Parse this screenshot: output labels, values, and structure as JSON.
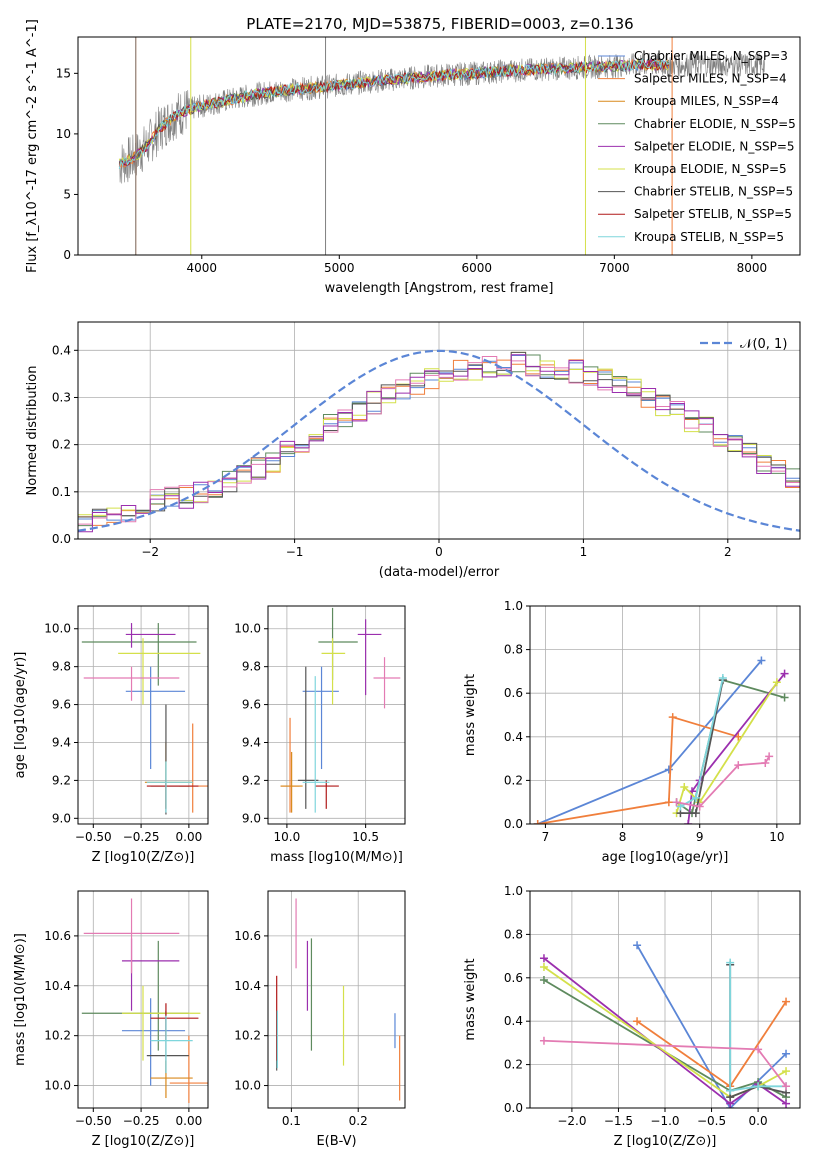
{
  "title": "PLATE=2170, MJD=53875, FIBERID=0003, z=0.136",
  "colors": {
    "chabrier_miles": "#5b86d6",
    "salpeter_miles": "#f07f3c",
    "kroupa_miles": "#d9891c",
    "chabrier_elodie": "#5e8a5e",
    "salpeter_elodie": "#9b2fae",
    "kroupa_elodie": "#d4e04a",
    "chabrier_stelib": "#555555",
    "salpeter_stelib": "#b01818",
    "kroupa_stelib": "#7fd6dc",
    "data": "#808080",
    "gaussian": "#5b86d6",
    "pink": "#e37bb3"
  },
  "chart_data": [
    {
      "type": "line",
      "xlabel": "wavelength [Angstrom, rest frame]",
      "ylabel": "Flux [f_λ10^-17 erg cm^-2 s^-1 A^-1]",
      "xlim": [
        3100,
        8350
      ],
      "ylim": [
        0,
        18
      ],
      "xticks": [
        "4000",
        "5000",
        "6000",
        "7000",
        "8000"
      ],
      "yticks": [
        "0",
        "5",
        "10",
        "15"
      ],
      "grid": false,
      "legend_position": "top-right",
      "legend": [
        "Chabrier MILES, N_SSP=3",
        "Salpeter MILES, N_SSP=4",
        "Kroupa MILES, N_SSP=4",
        "Chabrier ELODIE, N_SSP=5",
        "Salpeter ELODIE, N_SSP=5",
        "Kroupa ELODIE, N_SSP=5",
        "Chabrier STELIB, N_SSP=5",
        "Salpeter STELIB, N_SSP=5",
        "Kroupa STELIB, N_SSP=5"
      ],
      "continuum": {
        "x": [
          3400,
          3500,
          3600,
          3700,
          3800,
          3900,
          4000,
          4200,
          4400,
          4600,
          4800,
          5000,
          5200,
          5400,
          5600,
          5800,
          6000,
          6200,
          6400,
          6600,
          6800,
          7000,
          7200,
          7400
        ],
        "y": [
          7.5,
          8.0,
          9.0,
          10.5,
          11.5,
          12.0,
          12.3,
          12.8,
          13.3,
          13.6,
          13.8,
          14.0,
          14.3,
          14.5,
          14.7,
          14.9,
          15.0,
          15.2,
          15.3,
          15.4,
          15.5,
          15.6,
          15.7,
          15.7
        ]
      }
    },
    {
      "type": "histogram",
      "xlabel": "(data-model)/error",
      "ylabel": "Normed distribution",
      "xlim": [
        -2.5,
        2.5
      ],
      "ylim": [
        0,
        0.46
      ],
      "xticks": [
        "−2",
        "−1",
        "0",
        "1",
        "2"
      ],
      "yticks": [
        "0.0",
        "0.1",
        "0.2",
        "0.3",
        "0.4"
      ],
      "grid": true,
      "legend_position": "top-right",
      "legend": [
        "𝒩(0, 1)"
      ],
      "bin_width": 0.1,
      "envelope": [
        0.035,
        0.04,
        0.05,
        0.06,
        0.07,
        0.08,
        0.085,
        0.09,
        0.1,
        0.11,
        0.12,
        0.135,
        0.15,
        0.165,
        0.185,
        0.2,
        0.22,
        0.24,
        0.26,
        0.275,
        0.29,
        0.305,
        0.32,
        0.33,
        0.34,
        0.35,
        0.355,
        0.36,
        0.365,
        0.37,
        0.372,
        0.37,
        0.365,
        0.36,
        0.355,
        0.35,
        0.34,
        0.33,
        0.315,
        0.3,
        0.285,
        0.27,
        0.25,
        0.235,
        0.215,
        0.2,
        0.18,
        0.16,
        0.145,
        0.13
      ]
    },
    {
      "type": "scatter",
      "xlabel": "Z [log10(Z/Z⊙)]",
      "ylabel": "age [log10(age/yr)]",
      "xlim": [
        -0.58,
        0.1
      ],
      "ylim": [
        8.97,
        10.12
      ],
      "xticks": [
        "−0.50",
        "−0.25",
        "0.00"
      ],
      "yticks": [
        "9.0",
        "9.2",
        "9.4",
        "9.6",
        "9.8",
        "10.0"
      ],
      "grid": true,
      "points": [
        {
          "c": "chabrier_miles",
          "x": -0.2,
          "y": 9.67,
          "xl": -0.33,
          "xh": -0.02,
          "yl": 9.26,
          "yh": 9.8
        },
        {
          "c": "salpeter_miles",
          "x": 0.02,
          "y": 9.17,
          "xl": -0.05,
          "xh": 0.1,
          "yl": 9.03,
          "yh": 9.5
        },
        {
          "c": "kroupa_miles",
          "x": -0.12,
          "y": 9.19,
          "xl": -0.23,
          "xh": 0.02,
          "yl": 9.05,
          "yh": 9.4
        },
        {
          "c": "chabrier_elodie",
          "x": -0.16,
          "y": 9.93,
          "xl": -0.56,
          "xh": 0.04,
          "yl": 9.7,
          "yh": 10.03
        },
        {
          "c": "salpeter_elodie",
          "x": -0.3,
          "y": 9.97,
          "xl": -0.33,
          "xh": -0.07,
          "yl": 9.9,
          "yh": 10.03
        },
        {
          "c": "kroupa_elodie",
          "x": -0.24,
          "y": 9.87,
          "xl": -0.37,
          "xh": 0.06,
          "yl": 9.6,
          "yh": 9.95
        },
        {
          "c": "chabrier_stelib",
          "x": -0.12,
          "y": 9.17,
          "xl": -0.2,
          "xh": 0.0,
          "yl": 9.02,
          "yh": 9.6
        },
        {
          "c": "salpeter_stelib",
          "x": -0.12,
          "y": 9.17,
          "xl": -0.22,
          "xh": 0.05,
          "yl": 9.05,
          "yh": 9.2
        },
        {
          "c": "kroupa_stelib",
          "x": -0.12,
          "y": 9.19,
          "xl": -0.22,
          "xh": 0.02,
          "yl": 9.03,
          "yh": 9.3
        },
        {
          "c": "pink",
          "x": -0.3,
          "y": 9.74,
          "xl": -0.55,
          "xh": -0.05,
          "yl": 9.62,
          "yh": 9.8
        }
      ]
    },
    {
      "type": "scatter",
      "xlabel": "mass [log10(M/M⊙)]",
      "ylabel": "",
      "xlim": [
        9.88,
        10.75
      ],
      "ylim": [
        8.97,
        10.12
      ],
      "xticks": [
        "10.0",
        "10.5"
      ],
      "yticks": [
        "9.0",
        "9.2",
        "9.4",
        "9.6",
        "9.8",
        "10.0"
      ],
      "grid": true,
      "points": [
        {
          "c": "chabrier_miles",
          "x": 10.22,
          "y": 9.67,
          "xl": 10.1,
          "xh": 10.33,
          "yl": 9.26,
          "yh": 9.8
        },
        {
          "c": "salpeter_miles",
          "x": 10.02,
          "y": 9.17,
          "xl": 9.96,
          "xh": 10.08,
          "yl": 9.03,
          "yh": 9.53
        },
        {
          "c": "kroupa_miles",
          "x": 10.03,
          "y": 9.17,
          "xl": 9.96,
          "xh": 10.1,
          "yl": 9.03,
          "yh": 9.35
        },
        {
          "c": "chabrier_elodie",
          "x": 10.29,
          "y": 9.93,
          "xl": 10.2,
          "xh": 10.45,
          "yl": 9.73,
          "yh": 10.11
        },
        {
          "c": "salpeter_elodie",
          "x": 10.5,
          "y": 9.97,
          "xl": 10.45,
          "xh": 10.6,
          "yl": 9.65,
          "yh": 10.05
        },
        {
          "c": "kroupa_elodie",
          "x": 10.29,
          "y": 9.87,
          "xl": 10.22,
          "xh": 10.37,
          "yl": 9.6,
          "yh": 9.95
        },
        {
          "c": "chabrier_stelib",
          "x": 10.12,
          "y": 9.2,
          "xl": 10.07,
          "xh": 10.2,
          "yl": 9.05,
          "yh": 9.8
        },
        {
          "c": "salpeter_stelib",
          "x": 10.25,
          "y": 9.17,
          "xl": 10.18,
          "xh": 10.33,
          "yl": 9.05,
          "yh": 9.2
        },
        {
          "c": "kroupa_stelib",
          "x": 10.18,
          "y": 9.19,
          "xl": 10.1,
          "xh": 10.27,
          "yl": 9.03,
          "yh": 9.75
        },
        {
          "c": "pink",
          "x": 10.62,
          "y": 9.74,
          "xl": 10.55,
          "xh": 10.72,
          "yl": 9.58,
          "yh": 9.85
        }
      ]
    },
    {
      "type": "line",
      "xlabel": "age [log10(age/yr)]",
      "ylabel": "mass weight",
      "xlim": [
        6.8,
        10.3
      ],
      "ylim": [
        0,
        1.0
      ],
      "xticks": [
        "7",
        "8",
        "9",
        "10"
      ],
      "yticks": [
        "0.0",
        "0.2",
        "0.4",
        "0.6",
        "0.8",
        "1.0"
      ],
      "grid": true,
      "series": [
        {
          "c": "chabrier_miles",
          "x": [
            6.9,
            8.6,
            9.8
          ],
          "y": [
            0.0,
            0.25,
            0.75
          ]
        },
        {
          "c": "salpeter_miles",
          "x": [
            6.9,
            8.6,
            8.65,
            9.5
          ],
          "y": [
            0.0,
            0.1,
            0.49,
            0.4
          ]
        },
        {
          "c": "chabrier_elodie",
          "x": [
            8.7,
            8.9,
            9.3,
            10.1
          ],
          "y": [
            0.1,
            0.05,
            0.66,
            0.58
          ]
        },
        {
          "c": "salpeter_elodie",
          "x": [
            8.85,
            8.9,
            9.0,
            10.1
          ],
          "y": [
            0.0,
            0.15,
            0.2,
            0.69
          ]
        },
        {
          "c": "kroupa_elodie",
          "x": [
            8.7,
            8.8,
            9.0,
            10.0
          ],
          "y": [
            0.05,
            0.17,
            0.1,
            0.65
          ]
        },
        {
          "c": "chabrier_stelib",
          "x": [
            8.75,
            8.95,
            9.3
          ],
          "y": [
            0.05,
            0.05,
            0.66
          ]
        },
        {
          "c": "kroupa_stelib",
          "x": [
            8.75,
            8.95,
            9.3
          ],
          "y": [
            0.08,
            0.12,
            0.67
          ]
        },
        {
          "c": "pink",
          "x": [
            8.7,
            9.0,
            9.5,
            9.85,
            9.9
          ],
          "y": [
            0.1,
            0.08,
            0.27,
            0.28,
            0.31
          ]
        }
      ]
    },
    {
      "type": "scatter",
      "xlabel": "Z [log10(Z/Z⊙)]",
      "ylabel": "mass [log10(M/M⊙)]",
      "xlim": [
        -0.58,
        0.1
      ],
      "ylim": [
        9.91,
        10.78
      ],
      "xticks": [
        "−0.50",
        "−0.25",
        "0.00"
      ],
      "yticks": [
        "10.0",
        "10.2",
        "10.4",
        "10.6"
      ],
      "grid": true,
      "points": [
        {
          "c": "chabrier_miles",
          "x": -0.2,
          "y": 10.22,
          "xl": -0.35,
          "xh": -0.02,
          "yl": 10.0,
          "yh": 10.35
        },
        {
          "c": "salpeter_miles",
          "x": 0.0,
          "y": 10.01,
          "xl": -0.1,
          "xh": 0.1,
          "yl": 9.93,
          "yh": 10.2
        },
        {
          "c": "kroupa_miles",
          "x": -0.12,
          "y": 10.03,
          "xl": -0.2,
          "xh": 0.02,
          "yl": 9.95,
          "yh": 10.1
        },
        {
          "c": "chabrier_elodie",
          "x": -0.16,
          "y": 10.29,
          "xl": -0.56,
          "xh": 0.0,
          "yl": 10.14,
          "yh": 10.58
        },
        {
          "c": "salpeter_elodie",
          "x": -0.3,
          "y": 10.5,
          "xl": -0.35,
          "xh": -0.05,
          "yl": 10.3,
          "yh": 10.59
        },
        {
          "c": "kroupa_elodie",
          "x": -0.24,
          "y": 10.29,
          "xl": -0.35,
          "xh": 0.06,
          "yl": 10.1,
          "yh": 10.4
        },
        {
          "c": "chabrier_stelib",
          "x": -0.12,
          "y": 10.12,
          "xl": -0.22,
          "xh": 0.0,
          "yl": 10.05,
          "yh": 10.3
        },
        {
          "c": "salpeter_stelib",
          "x": -0.12,
          "y": 10.27,
          "xl": -0.2,
          "xh": 0.05,
          "yl": 10.18,
          "yh": 10.33
        },
        {
          "c": "kroupa_stelib",
          "x": -0.12,
          "y": 10.18,
          "xl": -0.2,
          "xh": 0.02,
          "yl": 10.05,
          "yh": 10.28
        },
        {
          "c": "pink",
          "x": -0.3,
          "y": 10.61,
          "xl": -0.55,
          "xh": -0.05,
          "yl": 10.45,
          "yh": 10.75
        }
      ]
    },
    {
      "type": "scatter",
      "xlabel": "E(B-V)",
      "ylabel": "",
      "xlim": [
        0.065,
        0.27
      ],
      "ylim": [
        9.91,
        10.78
      ],
      "xticks": [
        "0.1",
        "0.2"
      ],
      "yticks": [
        "10.0",
        "10.2",
        "10.4",
        "10.6"
      ],
      "grid": true,
      "points": [
        {
          "c": "chabrier_miles",
          "x": 0.255,
          "y": 10.22,
          "yl": 10.15,
          "yh": 10.29
        },
        {
          "c": "salpeter_miles",
          "x": 0.262,
          "y": 10.01,
          "yl": 9.94,
          "yh": 10.2
        },
        {
          "c": "chabrier_elodie",
          "x": 0.13,
          "y": 10.29,
          "yl": 10.14,
          "yh": 10.59
        },
        {
          "c": "salpeter_elodie",
          "x": 0.124,
          "y": 10.5,
          "yl": 10.3,
          "yh": 10.58
        },
        {
          "c": "kroupa_elodie",
          "x": 0.178,
          "y": 10.29,
          "yl": 10.08,
          "yh": 10.4
        },
        {
          "c": "chabrier_stelib",
          "x": 0.078,
          "y": 10.12,
          "yl": 10.06,
          "yh": 10.3
        },
        {
          "c": "salpeter_stelib",
          "x": 0.078,
          "y": 10.27,
          "yl": 10.1,
          "yh": 10.44
        },
        {
          "c": "kroupa_stelib",
          "x": 0.079,
          "y": 10.18,
          "yl": 10.07,
          "yh": 10.3
        },
        {
          "c": "pink",
          "x": 0.107,
          "y": 10.61,
          "yl": 10.47,
          "yh": 10.75
        }
      ]
    },
    {
      "type": "line",
      "xlabel": "Z [log10(Z/Z⊙)]",
      "ylabel": "mass weight",
      "xlim": [
        -2.45,
        0.45
      ],
      "ylim": [
        0,
        1.0
      ],
      "xticks": [
        "−2.0",
        "−1.5",
        "−1.0",
        "−0.5",
        "0.0"
      ],
      "yticks": [
        "0.0",
        "0.2",
        "0.4",
        "0.6",
        "0.8",
        "1.0"
      ],
      "grid": true,
      "series": [
        {
          "c": "chabrier_miles",
          "x": [
            -1.3,
            -0.3,
            0.3
          ],
          "y": [
            0.75,
            0.0,
            0.25
          ]
        },
        {
          "c": "salpeter_miles",
          "x": [
            -1.3,
            -0.3,
            0.3
          ],
          "y": [
            0.4,
            0.1,
            0.49
          ]
        },
        {
          "c": "chabrier_elodie",
          "x": [
            -2.3,
            -0.3,
            0.0,
            0.3
          ],
          "y": [
            0.59,
            0.08,
            0.12,
            0.05
          ]
        },
        {
          "c": "salpeter_elodie",
          "x": [
            -2.3,
            -0.3,
            0.0,
            0.3
          ],
          "y": [
            0.69,
            0.02,
            0.11,
            0.02
          ]
        },
        {
          "c": "kroupa_elodie",
          "x": [
            -2.3,
            -0.3,
            0.0,
            0.3
          ],
          "y": [
            0.65,
            0.05,
            0.1,
            0.17
          ]
        },
        {
          "c": "chabrier_stelib",
          "x": [
            -0.3,
            -0.3,
            0.0,
            0.3
          ],
          "y": [
            0.66,
            0.05,
            0.1,
            0.07
          ]
        },
        {
          "c": "kroupa_stelib",
          "x": [
            -0.3,
            -0.3,
            0.0,
            0.3
          ],
          "y": [
            0.67,
            0.08,
            0.1,
            0.1
          ]
        },
        {
          "c": "pink",
          "x": [
            -2.3,
            0.0,
            0.3
          ],
          "y": [
            0.31,
            0.27,
            0.1
          ]
        }
      ]
    }
  ]
}
